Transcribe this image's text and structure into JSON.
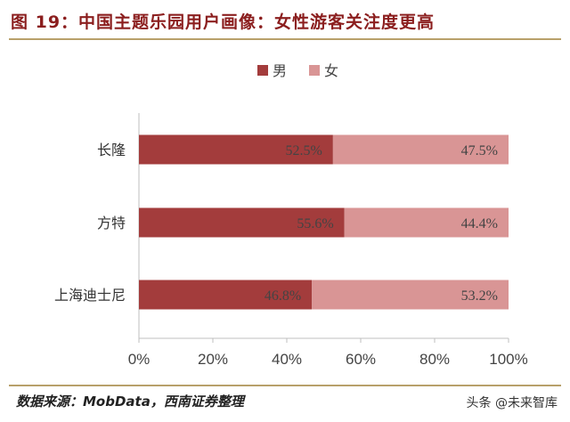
{
  "header": {
    "title": "图 19：中国主题乐园用户画像：女性游客关注度更高"
  },
  "footer": {
    "source": "数据来源：MobData，西南证券整理",
    "watermark": "头条 @未来智库"
  },
  "colors": {
    "male": "#a33c3c",
    "female": "#d99595",
    "title": "#8b1e1e",
    "rule": "#b8a06a",
    "axis": "#bfbfbf"
  },
  "chart_data": {
    "type": "bar",
    "orientation": "horizontal",
    "stacked": true,
    "percent_stacked": true,
    "title": "",
    "categories": [
      "长隆",
      "方特",
      "上海迪士尼"
    ],
    "series": [
      {
        "name": "男",
        "values": [
          52.5,
          55.6,
          46.8
        ]
      },
      {
        "name": "女",
        "values": [
          47.5,
          44.4,
          53.2
        ]
      }
    ],
    "data_labels": [
      [
        "52.5%",
        "55.6%",
        "46.8%"
      ],
      [
        "47.5%",
        "44.4%",
        "53.2%"
      ]
    ],
    "xlim": [
      0,
      100
    ],
    "x_ticks": [
      "0%",
      "20%",
      "40%",
      "60%",
      "80%",
      "100%"
    ],
    "xlabel": "",
    "ylabel": "",
    "legend_position": "top-center",
    "grid": false
  }
}
